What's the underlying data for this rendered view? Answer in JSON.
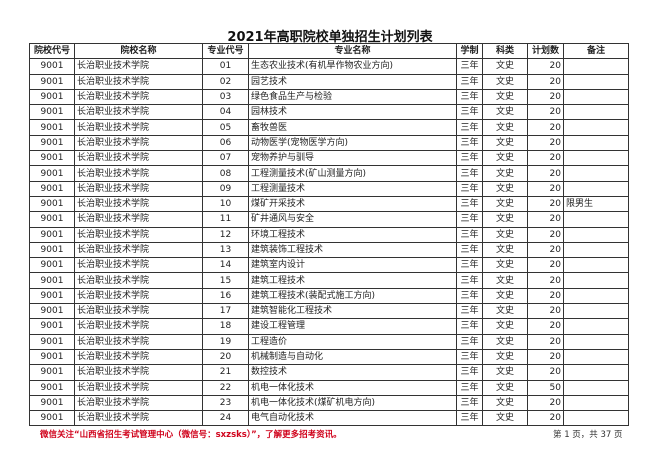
{
  "title": "2021年高职院校单独招生计划列表",
  "headers": [
    "院校代号",
    "院校名称",
    "专业代号",
    "专业名称",
    "学制",
    "科类",
    "计划数",
    "备注"
  ],
  "rows": [
    [
      "9001",
      "长治职业技术学院",
      "01",
      "生态农业技术(有机旱作物农业方向)",
      "三年",
      "文史",
      "20",
      ""
    ],
    [
      "9001",
      "长治职业技术学院",
      "02",
      "园艺技术",
      "三年",
      "文史",
      "20",
      ""
    ],
    [
      "9001",
      "长治职业技术学院",
      "03",
      "绿色食品生产与检验",
      "三年",
      "文史",
      "20",
      ""
    ],
    [
      "9001",
      "长治职业技术学院",
      "04",
      "园林技术",
      "三年",
      "文史",
      "20",
      ""
    ],
    [
      "9001",
      "长治职业技术学院",
      "05",
      "畜牧兽医",
      "三年",
      "文史",
      "20",
      ""
    ],
    [
      "9001",
      "长治职业技术学院",
      "06",
      "动物医学(宠物医学方向)",
      "三年",
      "文史",
      "20",
      ""
    ],
    [
      "9001",
      "长治职业技术学院",
      "07",
      "宠物养护与驯导",
      "三年",
      "文史",
      "20",
      ""
    ],
    [
      "9001",
      "长治职业技术学院",
      "08",
      "工程测量技术(矿山测量方向)",
      "三年",
      "文史",
      "20",
      ""
    ],
    [
      "9001",
      "长治职业技术学院",
      "09",
      "工程测量技术",
      "三年",
      "文史",
      "20",
      ""
    ],
    [
      "9001",
      "长治职业技术学院",
      "10",
      "煤矿开采技术",
      "三年",
      "文史",
      "20",
      "限男生"
    ],
    [
      "9001",
      "长治职业技术学院",
      "11",
      "矿井通风与安全",
      "三年",
      "文史",
      "20",
      ""
    ],
    [
      "9001",
      "长治职业技术学院",
      "12",
      "环境工程技术",
      "三年",
      "文史",
      "20",
      ""
    ],
    [
      "9001",
      "长治职业技术学院",
      "13",
      "建筑装饰工程技术",
      "三年",
      "文史",
      "20",
      ""
    ],
    [
      "9001",
      "长治职业技术学院",
      "14",
      "建筑室内设计",
      "三年",
      "文史",
      "20",
      ""
    ],
    [
      "9001",
      "长治职业技术学院",
      "15",
      "建筑工程技术",
      "三年",
      "文史",
      "20",
      ""
    ],
    [
      "9001",
      "长治职业技术学院",
      "16",
      "建筑工程技术(装配式施工方向)",
      "三年",
      "文史",
      "20",
      ""
    ],
    [
      "9001",
      "长治职业技术学院",
      "17",
      "建筑智能化工程技术",
      "三年",
      "文史",
      "20",
      ""
    ],
    [
      "9001",
      "长治职业技术学院",
      "18",
      "建设工程管理",
      "三年",
      "文史",
      "20",
      ""
    ],
    [
      "9001",
      "长治职业技术学院",
      "19",
      "工程造价",
      "三年",
      "文史",
      "20",
      ""
    ],
    [
      "9001",
      "长治职业技术学院",
      "20",
      "机械制造与自动化",
      "三年",
      "文史",
      "20",
      ""
    ],
    [
      "9001",
      "长治职业技术学院",
      "21",
      "数控技术",
      "三年",
      "文史",
      "20",
      ""
    ],
    [
      "9001",
      "长治职业技术学院",
      "22",
      "机电一体化技术",
      "三年",
      "文史",
      "50",
      ""
    ],
    [
      "9001",
      "长治职业技术学院",
      "23",
      "机电一体化技术(煤矿机电方向)",
      "三年",
      "文史",
      "20",
      ""
    ],
    [
      "9001",
      "长治职业技术学院",
      "24",
      "电气自动化技术",
      "三年",
      "文史",
      "20",
      ""
    ]
  ],
  "footer": "微信关注“山西省招生考试管理中心（微信号：sxzsks）”，了解更多招考资讯。",
  "page_info": "第 1 页，共 37 页",
  "colors": {
    "footer": "#d0021b"
  }
}
